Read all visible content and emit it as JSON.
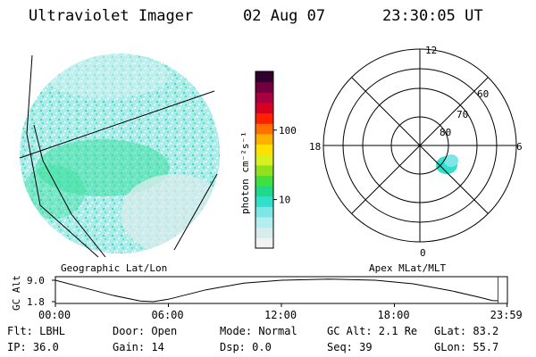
{
  "header": {
    "title": "Ultraviolet Imager",
    "date": "02 Aug 07",
    "time": "23:30:05 UT"
  },
  "colors": {
    "palette": [
      "#f2f2f2",
      "#d8ecec",
      "#b4eeee",
      "#7de6e6",
      "#30e0cc",
      "#20d88a",
      "#40e040",
      "#90e020",
      "#d8f020",
      "#ffe000",
      "#ffb000",
      "#ff7000",
      "#ff2000",
      "#d80020",
      "#a80040",
      "#700040",
      "#300030"
    ],
    "globe_base": "#a8ecec",
    "globe_green": "#3ee0a0",
    "globe_gray": "#dcecec"
  },
  "colorbar": {
    "unit_label": "photon cm⁻²s⁻¹",
    "ticks": [
      {
        "label": "100",
        "value": 100
      },
      {
        "label": "10",
        "value": 10
      }
    ],
    "range": [
      2,
      700
    ]
  },
  "polar": {
    "mlt_labels": {
      "top": "12",
      "left": "18",
      "right": "6",
      "bottom": "0"
    },
    "lat_labels": [
      "80",
      "70",
      "60"
    ]
  },
  "left_caption": "Geographic Lat/Lon",
  "right_caption": "Apex MLat/MLT",
  "timeline": {
    "axis_label": "GC Alt",
    "y_ticks": [
      "9.0",
      "1.8"
    ],
    "y_values": [
      9.0,
      1.8
    ],
    "x_ticks": [
      "00:00",
      "06:00",
      "12:00",
      "18:00",
      "23:59"
    ],
    "marker_time": "23:30",
    "altitude_curve": [
      {
        "t": 0.0,
        "alt": 9.0
      },
      {
        "t": 1.5,
        "alt": 6.5
      },
      {
        "t": 3.0,
        "alt": 4.0
      },
      {
        "t": 4.5,
        "alt": 2.0
      },
      {
        "t": 5.2,
        "alt": 1.8
      },
      {
        "t": 6.0,
        "alt": 2.6
      },
      {
        "t": 8.0,
        "alt": 5.8
      },
      {
        "t": 10.0,
        "alt": 8.0
      },
      {
        "t": 12.0,
        "alt": 9.0
      },
      {
        "t": 14.5,
        "alt": 9.4
      },
      {
        "t": 17.0,
        "alt": 9.0
      },
      {
        "t": 19.0,
        "alt": 7.8
      },
      {
        "t": 21.0,
        "alt": 5.5
      },
      {
        "t": 22.5,
        "alt": 3.3
      },
      {
        "t": 23.2,
        "alt": 2.2
      },
      {
        "t": 23.5,
        "alt": 2.1
      }
    ]
  },
  "info": {
    "filter": "Flt: LBHL",
    "door": "Door: Open",
    "mode": "Mode: Normal",
    "gc_alt": "GC Alt: 2.1 Re",
    "glat": "GLat:  83.2",
    "ip": "IP: 36.0",
    "gain": "Gain: 14",
    "dsp": "Dsp:    0.0",
    "seq": "Seq: 39",
    "glon": "GLon:  55.7"
  }
}
